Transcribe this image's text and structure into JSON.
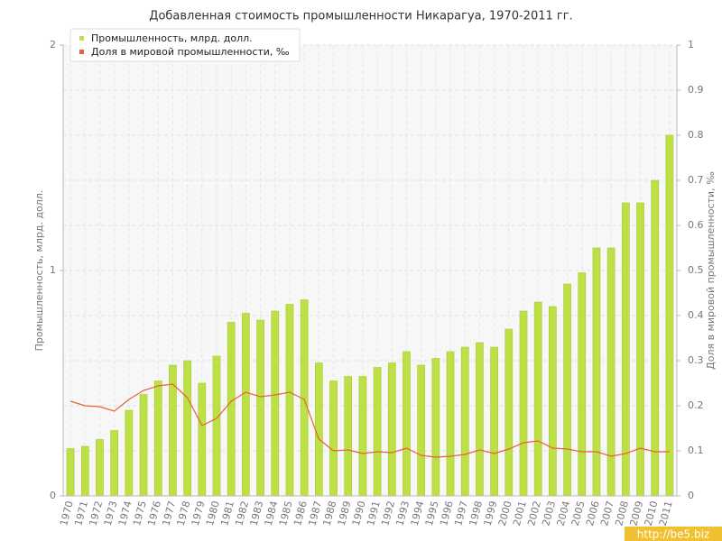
{
  "chart_data": {
    "type": "bar",
    "title": "Добавленная стоимость промышленности Никарагуа, 1970-2011 гг.",
    "y_label": "Промышленность, млрд. долл.",
    "y2_label": "Доля в мировой промышленности, ‰",
    "categories": [
      "1970",
      "1971",
      "1972",
      "1973",
      "1974",
      "1975",
      "1976",
      "1977",
      "1978",
      "1979",
      "1980",
      "1981",
      "1982",
      "1983",
      "1984",
      "1985",
      "1986",
      "1987",
      "1988",
      "1989",
      "1990",
      "1991",
      "1992",
      "1993",
      "1994",
      "1995",
      "1996",
      "1997",
      "1998",
      "1999",
      "2000",
      "2001",
      "2002",
      "2003",
      "2004",
      "2005",
      "2006",
      "2007",
      "2008",
      "2009",
      "2010",
      "2011"
    ],
    "series": [
      {
        "name": "Промышленность, млрд. долл.",
        "color": "#bde046",
        "type": "bar",
        "values": [
          0.21,
          0.22,
          0.25,
          0.29,
          0.38,
          0.45,
          0.51,
          0.58,
          0.6,
          0.5,
          0.62,
          0.77,
          0.81,
          0.78,
          0.82,
          0.85,
          0.87,
          0.59,
          0.51,
          0.53,
          0.53,
          0.57,
          0.59,
          0.64,
          0.58,
          0.61,
          0.64,
          0.66,
          0.68,
          0.66,
          0.74,
          0.82,
          0.86,
          0.84,
          0.94,
          0.99,
          1.1,
          1.1,
          1.3,
          1.3,
          1.4,
          1.6
        ]
      },
      {
        "name": "Доля в мировой промышленности, ‰",
        "color": "#e8603c",
        "type": "line",
        "axis": "y2",
        "values": [
          0.21,
          0.2,
          0.198,
          0.188,
          0.214,
          0.234,
          0.244,
          0.248,
          0.218,
          0.156,
          0.172,
          0.21,
          0.23,
          0.22,
          0.224,
          0.23,
          0.214,
          0.126,
          0.1,
          0.102,
          0.094,
          0.098,
          0.096,
          0.106,
          0.09,
          0.086,
          0.088,
          0.092,
          0.102,
          0.094,
          0.104,
          0.118,
          0.122,
          0.106,
          0.104,
          0.098,
          0.098,
          0.088,
          0.094,
          0.106,
          0.098,
          0.098
        ]
      }
    ],
    "ylim": [
      0,
      2
    ],
    "yticks": [
      0,
      1,
      2
    ],
    "y2lim": [
      0,
      1
    ],
    "y2ticks": [
      0,
      0.1,
      0.2,
      0.3,
      0.4,
      0.5,
      0.6,
      0.7,
      0.8,
      0.9,
      1
    ],
    "grid": true,
    "legend": "top-left",
    "watermark": "http://be5.biz"
  }
}
